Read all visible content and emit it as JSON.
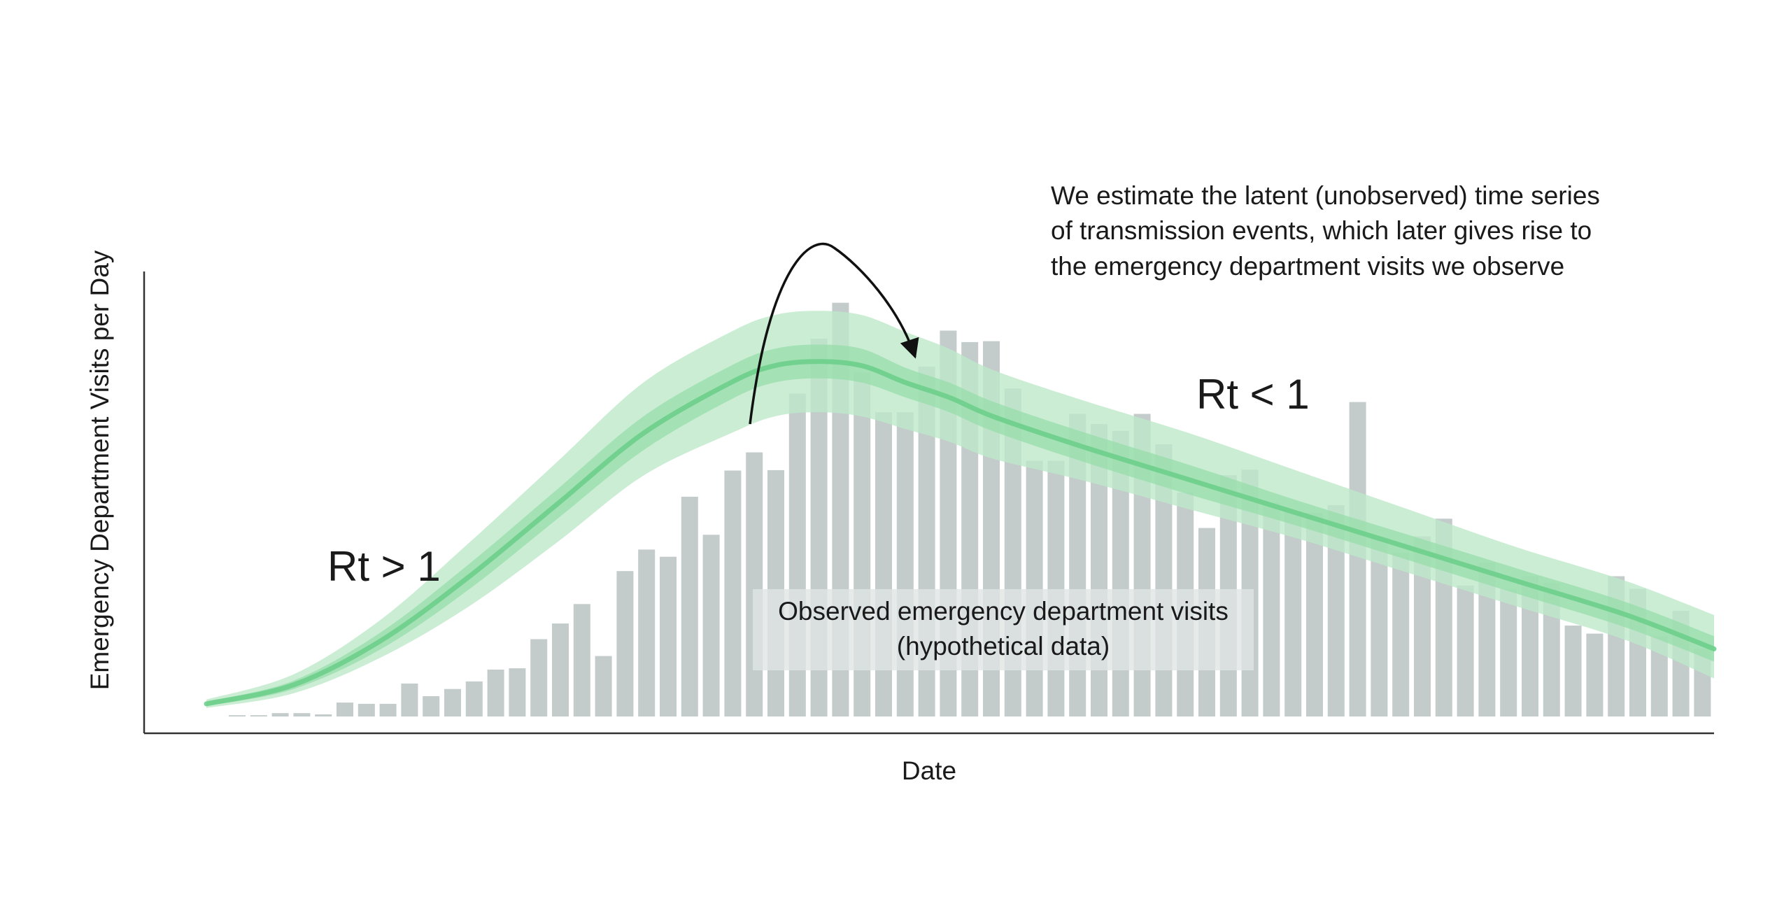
{
  "chart_data": {
    "type": "bar",
    "xlabel": "Date",
    "ylabel": "Emergency Department Visits per Day",
    "ylim": [
      0,
      100
    ],
    "grid": false,
    "values": [
      0.3,
      0.3,
      0.8,
      0.8,
      0.5,
      3.3,
      3.0,
      3.0,
      7.8,
      4.8,
      6.5,
      8.3,
      11.1,
      11.4,
      18.3,
      22.0,
      26.6,
      14.3,
      34.4,
      39.5,
      37.8,
      52.0,
      43.0,
      58.2,
      62.5,
      58.3,
      76.4,
      89.4,
      97.9,
      81.4,
      72.0,
      72.0,
      82.8,
      91.3,
      88.6,
      88.8,
      77.6,
      60.5,
      60.5,
      71.6,
      69.2,
      67.6,
      71.6,
      64.4,
      53.0,
      44.6,
      57.1,
      58.4,
      50.6,
      48.5,
      48.2,
      50.0,
      74.4,
      42.5,
      38.8,
      42.6,
      46.8,
      31.0,
      36.4,
      30.2,
      33.2,
      31.6,
      21.5,
      19.6,
      33.2,
      30.2,
      19.0,
      25.0,
      16.0
    ],
    "transmission_curve": {
      "x": [
        0,
        4,
        8,
        12,
        16,
        20,
        24,
        26,
        28,
        30,
        32,
        34,
        36,
        40,
        45,
        50,
        55,
        60,
        65,
        69
      ],
      "median": [
        3.0,
        7.5,
        18.0,
        33.0,
        50.0,
        67.0,
        79.0,
        83.0,
        84.0,
        83.0,
        79.0,
        75.5,
        71.0,
        64.0,
        56.0,
        48.0,
        40.0,
        32.0,
        24.0,
        16.0
      ],
      "inner_lower": [
        2.5,
        6.5,
        16.0,
        30.0,
        46.5,
        63.0,
        75.0,
        79.0,
        80.0,
        79.0,
        75.5,
        72.0,
        67.5,
        60.5,
        52.5,
        45.0,
        37.0,
        29.0,
        21.0,
        13.0
      ],
      "inner_upper": [
        3.5,
        8.5,
        20.0,
        36.0,
        53.5,
        71.0,
        83.0,
        87.0,
        88.0,
        87.0,
        82.5,
        79.0,
        74.5,
        67.5,
        59.5,
        51.0,
        43.0,
        35.0,
        27.0,
        19.0
      ],
      "outer_lower": [
        2.0,
        5.5,
        14.0,
        26.0,
        41.0,
        57.0,
        67.0,
        71.0,
        72.0,
        71.0,
        68.0,
        65.0,
        61.0,
        56.0,
        49.0,
        42.0,
        34.0,
        26.0,
        18.0,
        9.0
      ],
      "outer_upper": [
        4.0,
        10.0,
        23.0,
        41.0,
        60.0,
        79.0,
        91.0,
        95.0,
        96.0,
        95.0,
        91.0,
        87.0,
        82.0,
        75.0,
        67.0,
        58.0,
        49.0,
        40.0,
        32.0,
        24.0
      ]
    }
  },
  "annotations": {
    "note_line1": "We estimate the latent (unobserved) time series",
    "note_line2": "of transmission events, which later gives rise to",
    "note_line3": "the emergency department visits we observe",
    "rt_above": "Rt > 1",
    "rt_below": "Rt < 1",
    "box_line1": "Observed emergency department visits",
    "box_line2": "(hypothetical data)"
  },
  "colors": {
    "bars": "#c3cbcb",
    "band_outer": "#bde9c9",
    "band_inner": "#97ddab",
    "median_line": "#6ecf8c",
    "label_box": "#dfe5e4",
    "text": "#1a1a1a",
    "axis": "#333333"
  }
}
